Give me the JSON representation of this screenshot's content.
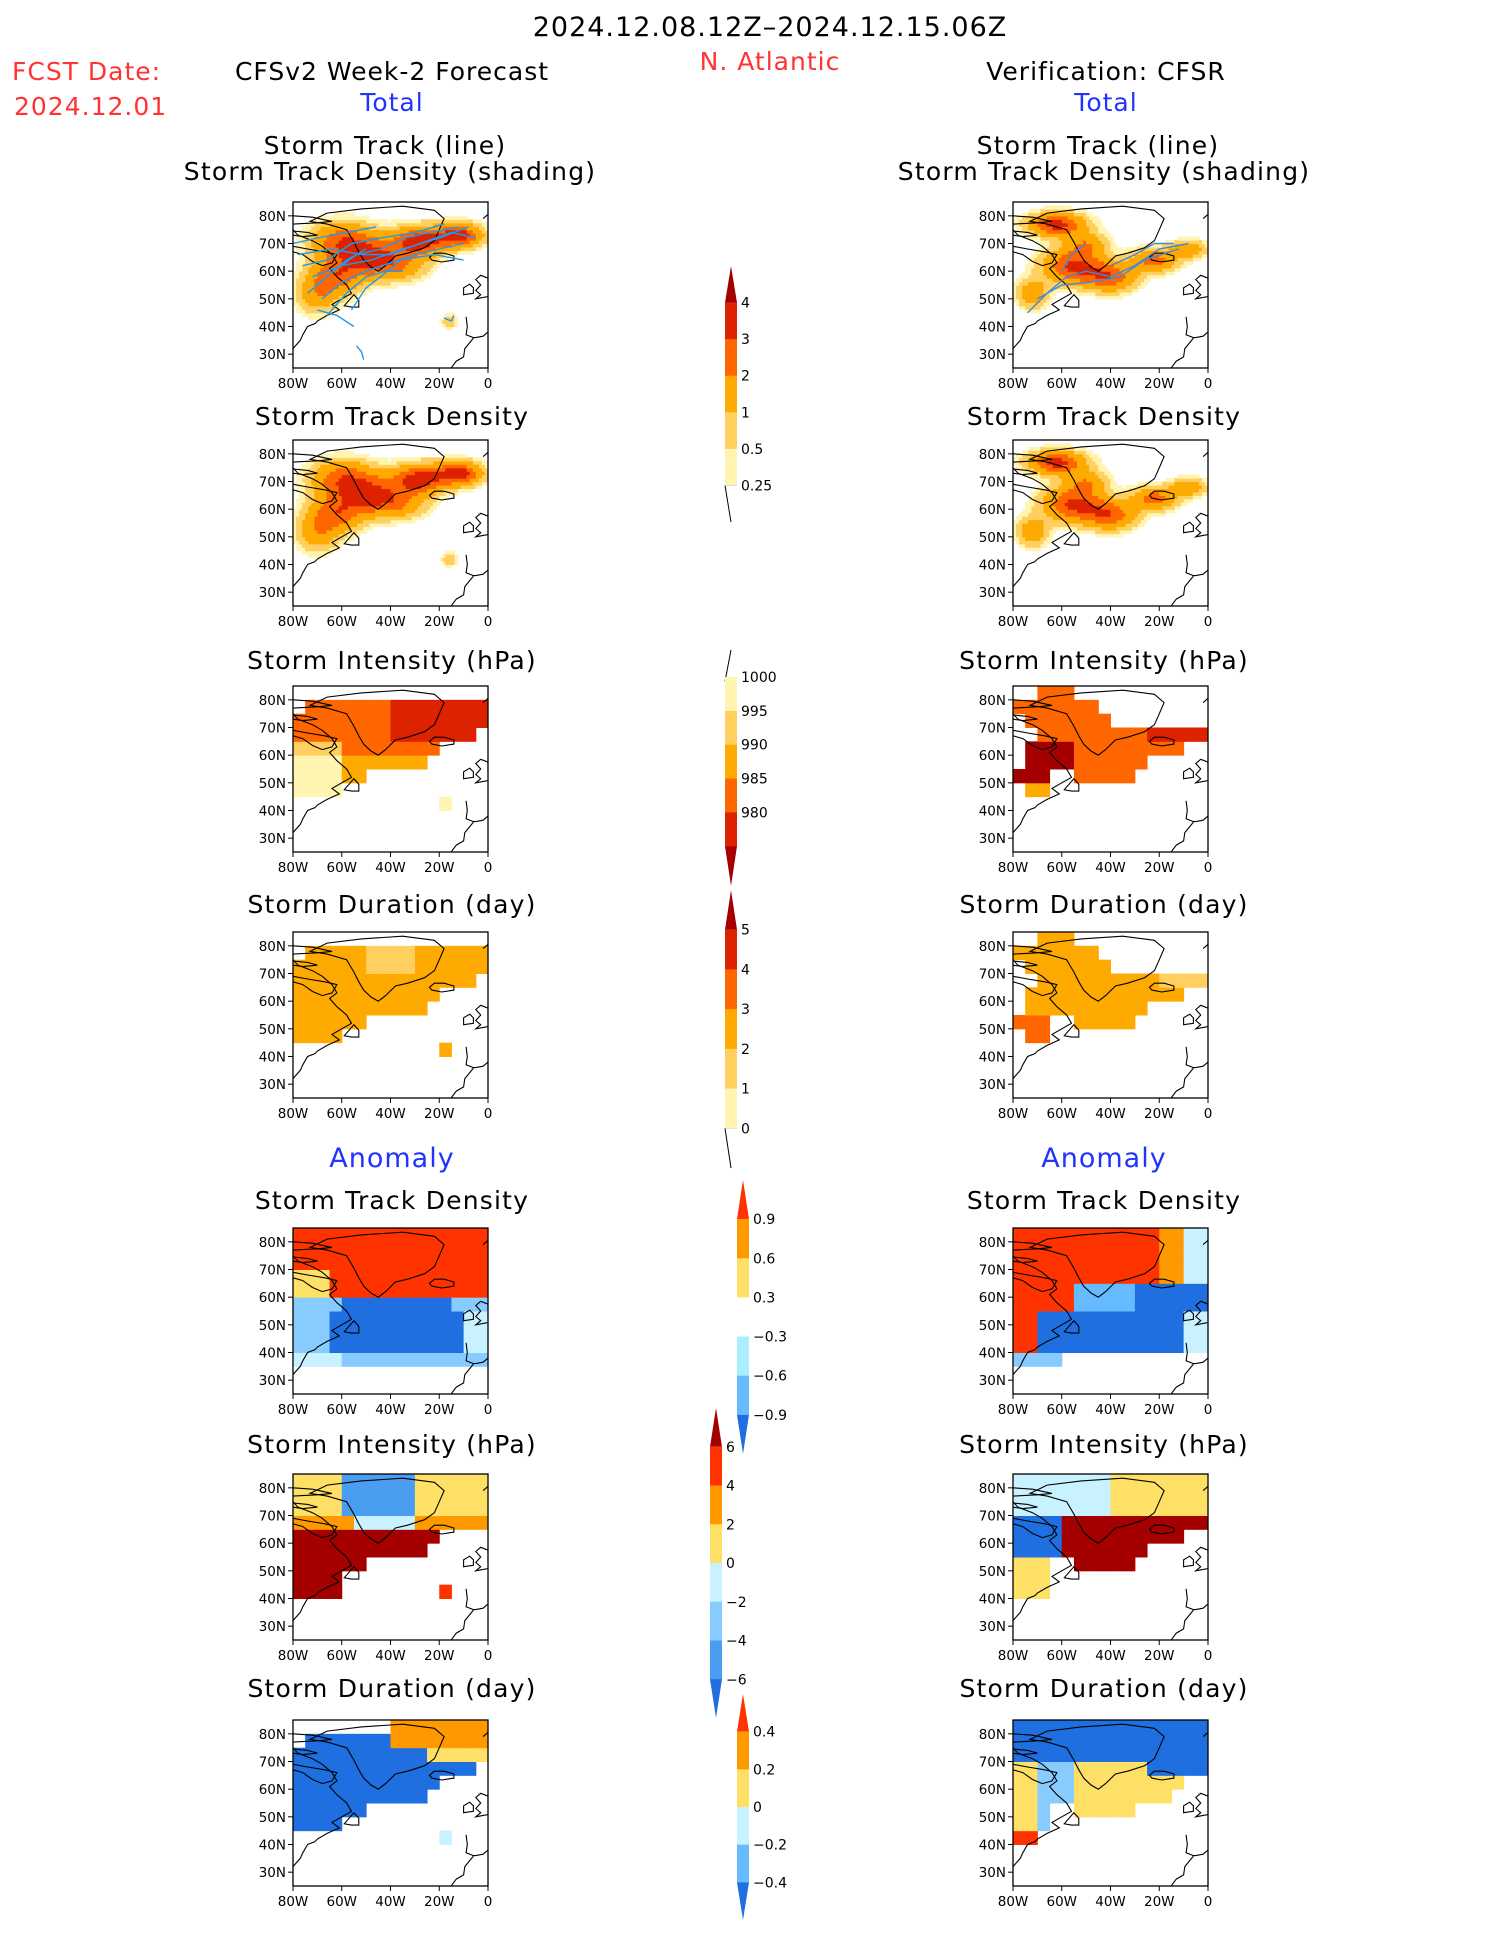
{
  "header": {
    "date_range": "2024.12.08.12Z–2024.12.15.06Z",
    "region": "N. Atlantic",
    "fcst_label": "FCST Date:",
    "fcst_date": "2024.12.01",
    "left_title": "CFSv2 Week-2 Forecast",
    "right_title": "Verification: CFSR",
    "left_sub": "Total",
    "right_sub": "Total"
  },
  "sections": {
    "anomaly_left": "Anomaly",
    "anomaly_right": "Anomaly"
  },
  "panel_titles": {
    "track_line": "Storm Track (line)",
    "track_shading": "Storm Track Density (shading)",
    "density": "Storm Track Density",
    "intensity": "Storm Intensity (hPa)",
    "duration": "Storm Duration (day)"
  },
  "axes": {
    "lat_ticks": [
      "80N",
      "70N",
      "60N",
      "50N",
      "40N",
      "30N"
    ],
    "lon_ticks": [
      "80W",
      "60W",
      "40W",
      "20W",
      "0"
    ]
  },
  "colorbars": [
    {
      "id": "cb-density",
      "labels": [
        "4",
        "3",
        "2",
        "1",
        "0.5",
        "0.25"
      ],
      "colors": [
        "#a50000",
        "#dd2200",
        "#ff6600",
        "#ffaa00",
        "#ffd060",
        "#fff4b0"
      ]
    },
    {
      "id": "cb-intensity",
      "labels": [
        "1000",
        "995",
        "990",
        "985",
        "980"
      ],
      "colors": [
        "#fff4b0",
        "#ffd060",
        "#ffaa00",
        "#ff6600",
        "#dd2200",
        "#a50000"
      ]
    },
    {
      "id": "cb-duration",
      "labels": [
        "5",
        "4",
        "3",
        "2",
        "1",
        "0"
      ],
      "colors": [
        "#a50000",
        "#dd2200",
        "#ff6600",
        "#ffaa00",
        "#ffd060",
        "#fff4b0"
      ]
    },
    {
      "id": "cb-anom-density",
      "labels": [
        "0.9",
        "0.6",
        "0.3",
        "−0.3",
        "−0.6",
        "−0.9"
      ],
      "colors": [
        "#ff3300",
        "#ff9900",
        "#ffe066",
        "#ffffff",
        "#aaeeff",
        "#66bbff",
        "#1f6fe0"
      ]
    },
    {
      "id": "cb-anom-intensity",
      "labels": [
        "6",
        "4",
        "2",
        "0",
        "−2",
        "−4",
        "−6"
      ],
      "colors": [
        "#a50000",
        "#ff3300",
        "#ff9900",
        "#ffe066",
        "#c8f2ff",
        "#88ccff",
        "#4a9df0",
        "#1f6fe0"
      ]
    },
    {
      "id": "cb-anom-duration",
      "labels": [
        "0.4",
        "0.2",
        "0",
        "−0.2",
        "−0.4"
      ],
      "colors": [
        "#ff3300",
        "#ff9900",
        "#ffe066",
        "#c8f2ff",
        "#66bbff",
        "#1f6fe0"
      ]
    }
  ]
}
